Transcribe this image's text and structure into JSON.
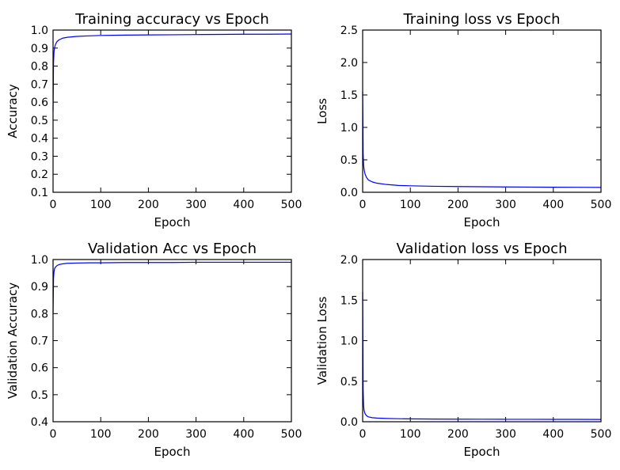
{
  "chart_data": [
    {
      "type": "line",
      "title": "Training accuracy vs Epoch",
      "xlabel": "Epoch",
      "ylabel": "Accuracy",
      "xlim": [
        0,
        500
      ],
      "ylim": [
        0.1,
        1.0
      ],
      "xticks": [
        "0",
        "100",
        "200",
        "300",
        "400",
        "500"
      ],
      "yticks": [
        "0.1",
        "0.2",
        "0.3",
        "0.4",
        "0.5",
        "0.6",
        "0.7",
        "0.8",
        "0.9",
        "1.0"
      ],
      "grid": false,
      "color": "#0000ff",
      "series": [
        {
          "x": [
            0,
            1,
            2,
            3,
            5,
            8,
            12,
            20,
            30,
            50,
            75,
            100,
            150,
            200,
            250,
            300,
            350,
            400,
            450,
            500
          ],
          "y": [
            0.55,
            0.82,
            0.88,
            0.9,
            0.92,
            0.935,
            0.945,
            0.955,
            0.96,
            0.965,
            0.968,
            0.97,
            0.972,
            0.973,
            0.974,
            0.975,
            0.976,
            0.977,
            0.977,
            0.978
          ]
        }
      ]
    },
    {
      "type": "line",
      "title": "Training loss vs Epoch",
      "xlabel": "Epoch",
      "ylabel": "Loss",
      "xlim": [
        0,
        500
      ],
      "ylim": [
        0.0,
        2.5
      ],
      "xticks": [
        "0",
        "100",
        "200",
        "300",
        "400",
        "500"
      ],
      "yticks": [
        "0.0",
        "0.5",
        "1.0",
        "1.5",
        "2.0",
        "2.5"
      ],
      "grid": false,
      "color": "#0000ff",
      "series": [
        {
          "x": [
            0,
            1,
            2,
            3,
            5,
            8,
            12,
            20,
            30,
            50,
            75,
            100,
            150,
            200,
            250,
            300,
            350,
            400,
            450,
            500
          ],
          "y": [
            1.55,
            0.6,
            0.42,
            0.35,
            0.28,
            0.23,
            0.19,
            0.16,
            0.14,
            0.12,
            0.105,
            0.1,
            0.092,
            0.088,
            0.085,
            0.082,
            0.08,
            0.078,
            0.077,
            0.075
          ]
        }
      ]
    },
    {
      "type": "line",
      "title": "Validation Acc vs Epoch",
      "xlabel": "Epoch",
      "ylabel": "Validation Accuracy",
      "xlim": [
        0,
        500
      ],
      "ylim": [
        0.4,
        1.0
      ],
      "xticks": [
        "0",
        "100",
        "200",
        "300",
        "400",
        "500"
      ],
      "yticks": [
        "0.4",
        "0.5",
        "0.6",
        "0.7",
        "0.8",
        "0.9",
        "1.0"
      ],
      "grid": false,
      "color": "#0000ff",
      "series": [
        {
          "x": [
            0,
            1,
            2,
            3,
            5,
            8,
            12,
            20,
            30,
            50,
            75,
            100,
            150,
            200,
            250,
            300,
            350,
            400,
            450,
            500
          ],
          "y": [
            0.8,
            0.93,
            0.955,
            0.965,
            0.972,
            0.977,
            0.981,
            0.984,
            0.986,
            0.987,
            0.988,
            0.988,
            0.989,
            0.989,
            0.989,
            0.99,
            0.99,
            0.99,
            0.99,
            0.99
          ]
        }
      ]
    },
    {
      "type": "line",
      "title": "Validation loss vs Epoch",
      "xlabel": "Epoch",
      "ylabel": "Validation Loss",
      "xlim": [
        0,
        500
      ],
      "ylim": [
        0.0,
        2.0
      ],
      "xticks": [
        "0",
        "100",
        "200",
        "300",
        "400",
        "500"
      ],
      "yticks": [
        "0.0",
        "0.5",
        "1.0",
        "1.5",
        "2.0"
      ],
      "grid": false,
      "color": "#0000ff",
      "series": [
        {
          "x": [
            0,
            1,
            2,
            3,
            5,
            8,
            12,
            20,
            30,
            50,
            75,
            100,
            150,
            200,
            250,
            300,
            350,
            400,
            450,
            500
          ],
          "y": [
            1.6,
            0.4,
            0.2,
            0.14,
            0.1,
            0.075,
            0.06,
            0.05,
            0.045,
            0.04,
            0.037,
            0.035,
            0.033,
            0.032,
            0.031,
            0.03,
            0.03,
            0.029,
            0.029,
            0.028
          ]
        }
      ]
    }
  ]
}
